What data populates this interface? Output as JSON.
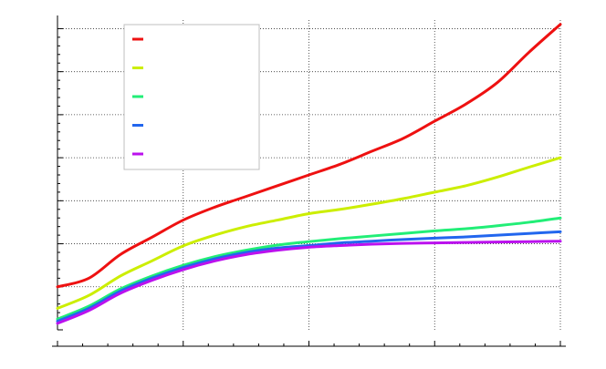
{
  "chart_data": {
    "type": "line",
    "title": "",
    "xlabel": "",
    "ylabel": "",
    "xlim": [
      0,
      4
    ],
    "ylim": [
      0,
      7.2
    ],
    "grid": true,
    "legend_position": "top-left",
    "x": [
      0,
      0.25,
      0.5,
      0.75,
      1.0,
      1.25,
      1.5,
      1.75,
      2.0,
      2.25,
      2.5,
      2.75,
      3.0,
      3.25,
      3.5,
      3.75,
      4.0
    ],
    "series": [
      {
        "name": "",
        "color": "#ee1111",
        "values": [
          1.0,
          1.2,
          1.75,
          2.15,
          2.55,
          2.85,
          3.1,
          3.35,
          3.6,
          3.85,
          4.15,
          4.45,
          4.85,
          5.25,
          5.75,
          6.45,
          7.1
        ]
      },
      {
        "name": "",
        "color": "#ccee00",
        "values": [
          0.5,
          0.8,
          1.25,
          1.6,
          1.95,
          2.2,
          2.4,
          2.55,
          2.7,
          2.8,
          2.92,
          3.05,
          3.2,
          3.35,
          3.55,
          3.78,
          4.0
        ]
      },
      {
        "name": "",
        "color": "#22ee77",
        "values": [
          0.25,
          0.55,
          0.95,
          1.25,
          1.5,
          1.7,
          1.85,
          1.97,
          2.05,
          2.12,
          2.18,
          2.24,
          2.3,
          2.35,
          2.42,
          2.5,
          2.6
        ]
      },
      {
        "name": "",
        "color": "#2266ee",
        "values": [
          0.2,
          0.5,
          0.9,
          1.2,
          1.45,
          1.65,
          1.8,
          1.9,
          1.96,
          2.02,
          2.06,
          2.1,
          2.13,
          2.16,
          2.2,
          2.24,
          2.28
        ]
      },
      {
        "name": "",
        "color": "#bb11ee",
        "values": [
          0.15,
          0.45,
          0.85,
          1.15,
          1.4,
          1.6,
          1.75,
          1.85,
          1.92,
          1.96,
          1.99,
          2.01,
          2.02,
          2.03,
          2.04,
          2.05,
          2.06
        ]
      }
    ]
  }
}
